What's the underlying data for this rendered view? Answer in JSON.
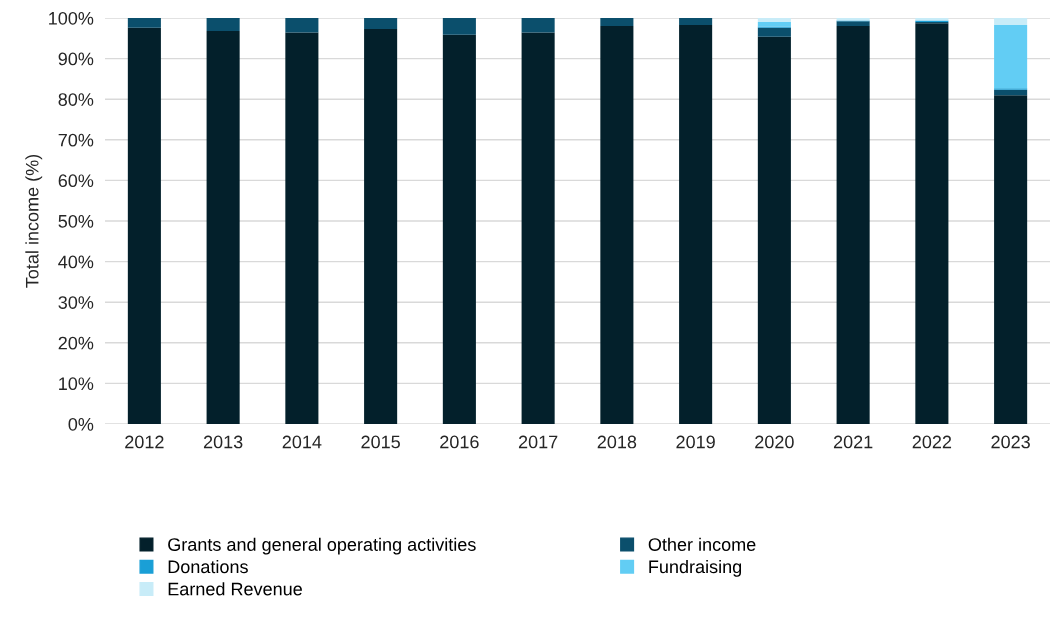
{
  "chart_data": {
    "type": "bar",
    "stacked": true,
    "ylabel": "Total income (%)",
    "categories": [
      "2012",
      "2013",
      "2014",
      "2015",
      "2016",
      "2017",
      "2018",
      "2019",
      "2020",
      "2021",
      "2022",
      "2023"
    ],
    "series": [
      {
        "name": "Grants and general operating activities",
        "color": "#03202b",
        "values": [
          97.6,
          96.8,
          96.4,
          97.3,
          95.9,
          96.4,
          98.0,
          98.3,
          95.4,
          98.0,
          98.7,
          81.0
        ]
      },
      {
        "name": "Other income",
        "color": "#0b4f6c",
        "values": [
          2.4,
          3.2,
          3.6,
          2.7,
          4.1,
          3.6,
          2.0,
          1.7,
          2.2,
          1.2,
          0.3,
          1.3
        ]
      },
      {
        "name": "Donations",
        "color": "#1a9fd6",
        "values": [
          0,
          0,
          0,
          0,
          0,
          0,
          0,
          0,
          0.3,
          0.2,
          0.4,
          0.4
        ]
      },
      {
        "name": "Fundraising",
        "color": "#62cdf4",
        "values": [
          0,
          0,
          0,
          0,
          0,
          0,
          0,
          0,
          1.1,
          0,
          0,
          15.6
        ]
      },
      {
        "name": "Earned Revenue",
        "color": "#c8ecf8",
        "values": [
          0,
          0,
          0,
          0,
          0,
          0,
          0,
          0,
          1.0,
          0.6,
          0.6,
          1.7
        ]
      }
    ],
    "ylim": [
      0,
      100
    ],
    "yticks": [
      {
        "value": 0,
        "label": "0%"
      },
      {
        "value": 10,
        "label": "10%"
      },
      {
        "value": 20,
        "label": "20%"
      },
      {
        "value": 30,
        "label": "30%"
      },
      {
        "value": 40,
        "label": "40%"
      },
      {
        "value": 50,
        "label": "50%"
      },
      {
        "value": 60,
        "label": "60%"
      },
      {
        "value": 70,
        "label": "70%"
      },
      {
        "value": 80,
        "label": "80%"
      },
      {
        "value": 90,
        "label": "90%"
      },
      {
        "value": 100,
        "label": "100%"
      }
    ],
    "grid": "y",
    "legend": "bottom"
  }
}
